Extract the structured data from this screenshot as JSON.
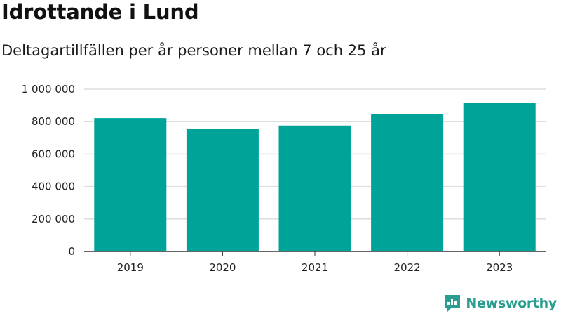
{
  "header": {
    "title": "Idrottande i Lund",
    "subtitle": "Deltagartillfällen per år personer mellan 7 och 25 år"
  },
  "brand": {
    "name": "Newsworthy",
    "icon": "newsworthy-logo-icon",
    "color": "#2a9d8f"
  },
  "colors": {
    "bar": "#00a398",
    "grid": "#dddddd",
    "axis": "#333333"
  },
  "chart_data": {
    "type": "bar",
    "categories": [
      "2019",
      "2020",
      "2021",
      "2022",
      "2023"
    ],
    "values": [
      822000,
      754000,
      776000,
      845000,
      914000
    ],
    "ylim": [
      0,
      1000000
    ],
    "yticks": [
      0,
      200000,
      400000,
      600000,
      800000,
      1000000
    ],
    "ytick_labels": [
      "0",
      "200 000",
      "400 000",
      "600 000",
      "800 000",
      "1 000 000"
    ],
    "grid": true,
    "legend": "none"
  }
}
